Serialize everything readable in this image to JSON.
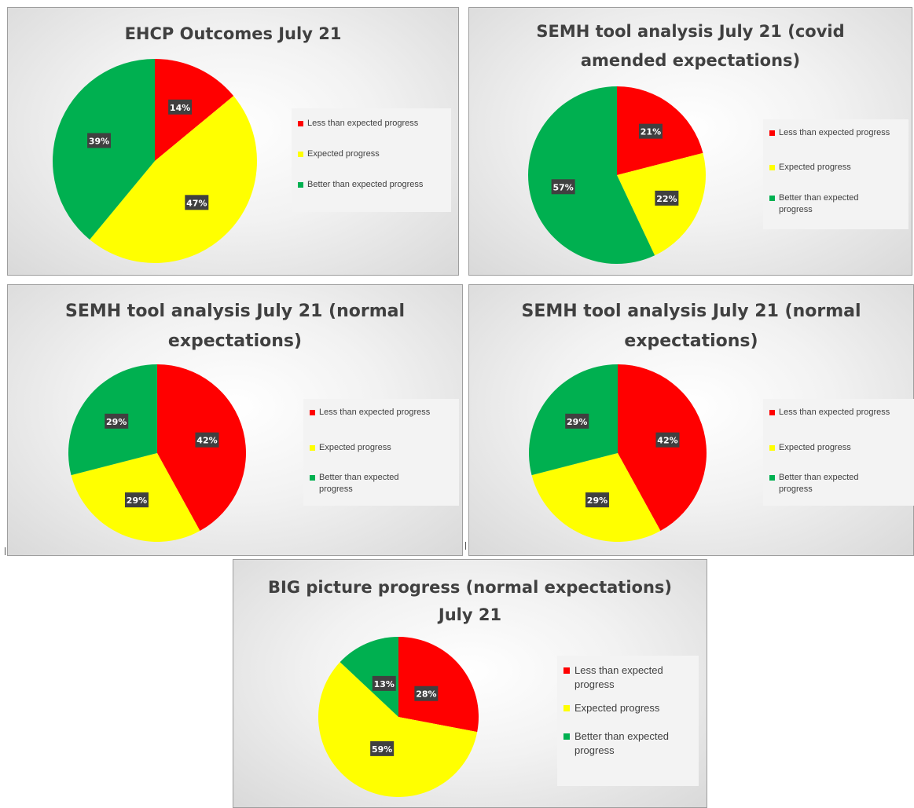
{
  "colors": {
    "less": "#ff0000",
    "expected": "#ffff00",
    "better": "#00b050",
    "label_bg": "#404040",
    "label_fg": "#ffffff"
  },
  "chart_data": [
    {
      "type": "pie",
      "title": "EHCP Outcomes July 21",
      "categories": [
        "Less than expected progress",
        "Expected progress",
        "Better than expected progress"
      ],
      "values": [
        14,
        47,
        39
      ],
      "labels": [
        "14%",
        "47%",
        "39%"
      ],
      "legend_position": "right"
    },
    {
      "type": "pie",
      "title": "SEMH tool analysis July 21 (covid\namended expectations)",
      "categories": [
        "Less than expected progress",
        "Expected progress",
        "Better than expected progress"
      ],
      "values": [
        21,
        22,
        57
      ],
      "labels": [
        "21%",
        "22%",
        "57%"
      ],
      "legend_position": "right"
    },
    {
      "type": "pie",
      "title": "SEMH tool analysis July 21 (normal\nexpectations)",
      "categories": [
        "Less than expected progress",
        "Expected progress",
        "Better than expected progress"
      ],
      "values": [
        42,
        29,
        29
      ],
      "labels": [
        "42%",
        "29%",
        "29%"
      ],
      "legend_position": "right"
    },
    {
      "type": "pie",
      "title": "SEMH tool analysis July 21 (normal\nexpectations)",
      "categories": [
        "Less than expected progress",
        "Expected progress",
        "Better than expected progress"
      ],
      "values": [
        42,
        29,
        29
      ],
      "labels": [
        "42%",
        "29%",
        "29%"
      ],
      "legend_position": "right"
    },
    {
      "type": "pie",
      "title": "BIG picture progress (normal expectations)\nJuly 21",
      "categories": [
        "Less than expected progress",
        "Expected progress",
        "Better than expected progress"
      ],
      "values": [
        28,
        59,
        13
      ],
      "labels": [
        "28%",
        "59%",
        "13%"
      ],
      "legend_position": "right"
    }
  ]
}
